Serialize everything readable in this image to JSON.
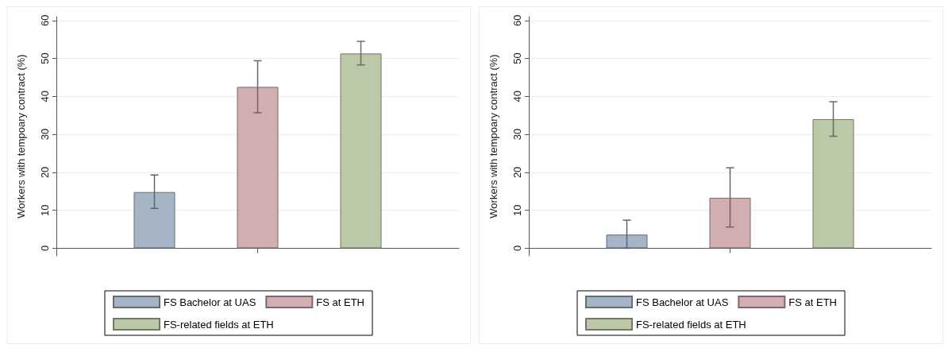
{
  "chart_data": [
    {
      "type": "bar",
      "ylabel": "Workers with tempoary contract (%)",
      "categories": [
        null
      ],
      "ylim": [
        -2,
        61
      ],
      "yticks": [
        0,
        10,
        20,
        30,
        40,
        50,
        60
      ],
      "grid": "y",
      "legend": "bottom",
      "series": [
        {
          "name": "FS Bachelor at UAS",
          "color": "#a6b5c5",
          "values": [
            14.8
          ],
          "errors": [
            [
              10.5,
              19.3
            ]
          ]
        },
        {
          "name": "FS at ETH",
          "color": "#d2aeb2",
          "values": [
            42.5
          ],
          "errors": [
            [
              35.7,
              49.4
            ]
          ]
        },
        {
          "name": "FS-related fields at ETH",
          "color": "#bcc9a9",
          "values": [
            51.3
          ],
          "errors": [
            [
              48.3,
              54.5
            ]
          ]
        }
      ]
    },
    {
      "type": "bar",
      "ylabel": "Workers with tempoary contract (%)",
      "categories": [
        null
      ],
      "ylim": [
        -2,
        61
      ],
      "yticks": [
        0,
        10,
        20,
        30,
        40,
        50,
        60
      ],
      "grid": "y",
      "legend": "bottom",
      "series": [
        {
          "name": "FS Bachelor at UAS",
          "color": "#a6b5c5",
          "values": [
            3.6
          ],
          "errors": [
            [
              0,
              7.4
            ]
          ]
        },
        {
          "name": "FS at ETH",
          "color": "#d2aeb2",
          "values": [
            13.3
          ],
          "errors": [
            [
              5.6,
              21.2
            ]
          ]
        },
        {
          "name": "FS-related fields at ETH",
          "color": "#bcc9a9",
          "values": [
            34.0
          ],
          "errors": [
            [
              29.5,
              38.6
            ]
          ]
        }
      ]
    }
  ]
}
